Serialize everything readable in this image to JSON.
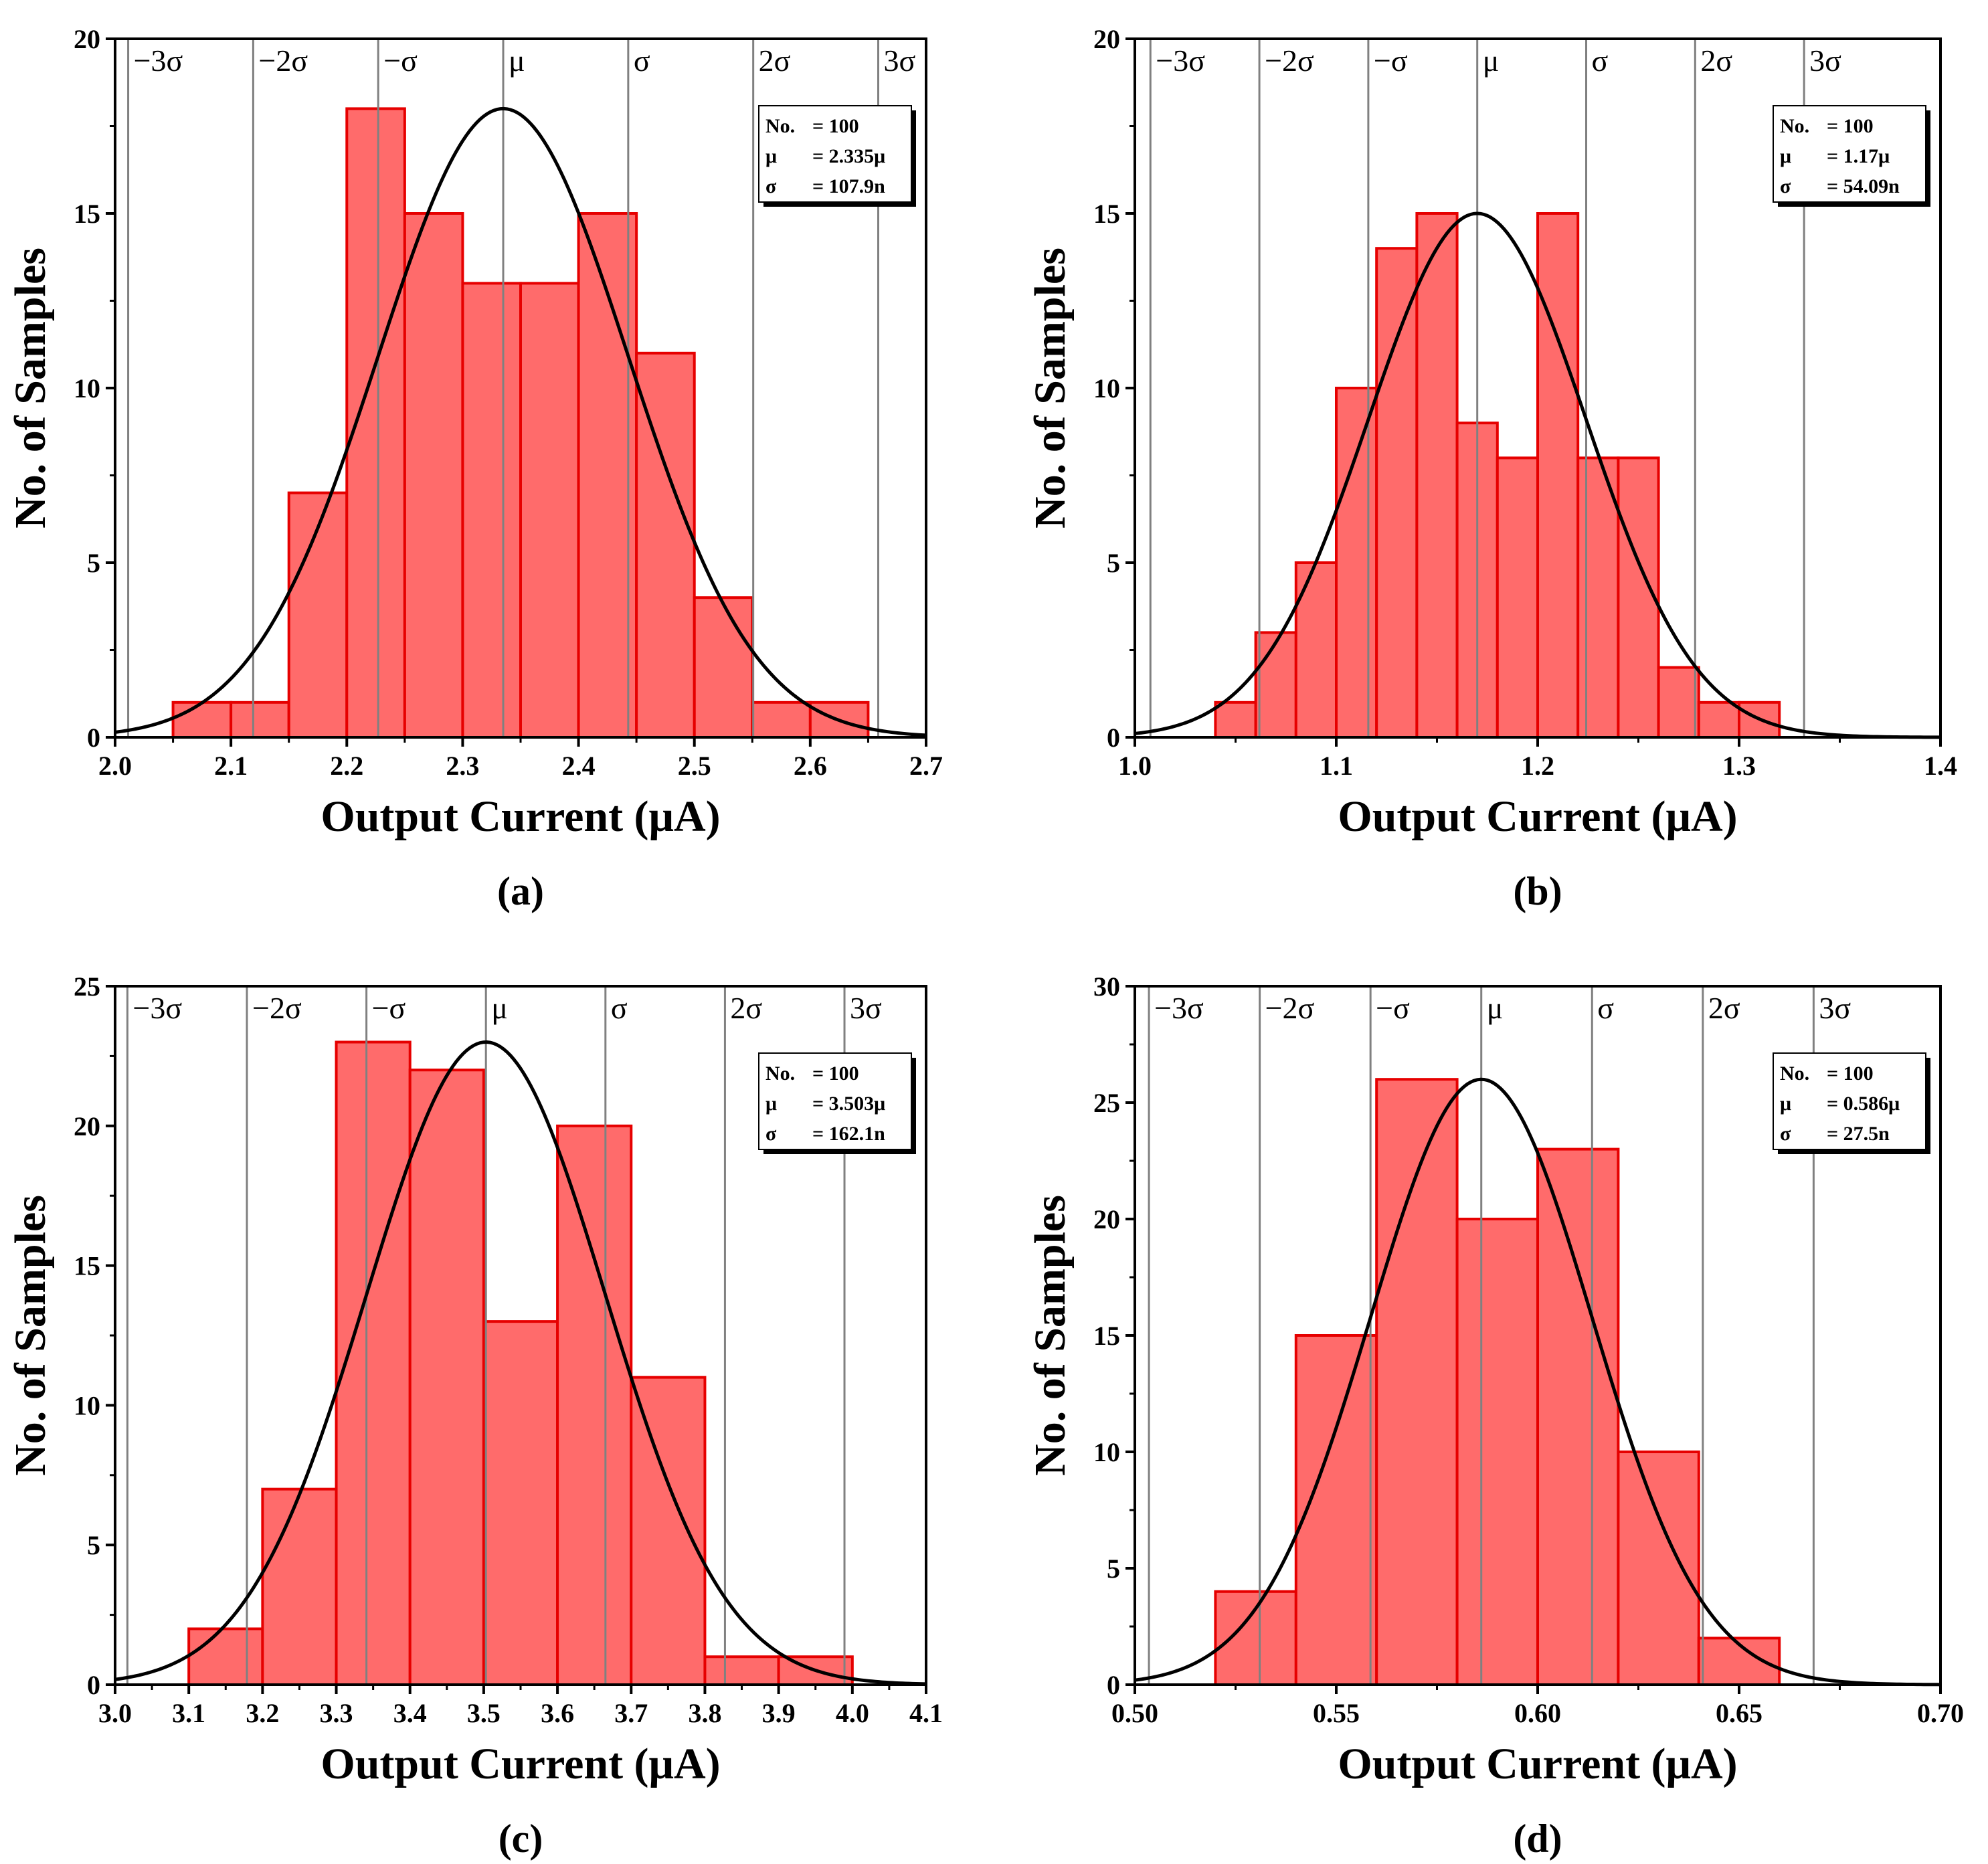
{
  "colors": {
    "bar_fill": "#ff6b6b",
    "bar_edge": "#e60000",
    "curve": "#000000",
    "sigma_line": "#808080",
    "axis": "#000000"
  },
  "chart_data": [
    {
      "type": "bar",
      "panel_label": "(a)",
      "xlabel": "Output Current (μA)",
      "ylabel": "No. of Samples",
      "xlim": [
        2.0,
        2.7
      ],
      "ylim": [
        0,
        20
      ],
      "x_ticks": [
        2.0,
        2.1,
        2.2,
        2.3,
        2.4,
        2.5,
        2.6,
        2.7
      ],
      "x_tick_labels": [
        "2.0",
        "2.1",
        "2.2",
        "2.3",
        "2.4",
        "2.5",
        "2.6",
        "2.7"
      ],
      "y_ticks": [
        0,
        5,
        10,
        15,
        20
      ],
      "y_tick_labels": [
        "0",
        "5",
        "10",
        "15",
        "20"
      ],
      "bin_edges": [
        2.05,
        2.1,
        2.15,
        2.2,
        2.25,
        2.3,
        2.35,
        2.4,
        2.45,
        2.5,
        2.55,
        2.6,
        2.65
      ],
      "counts": [
        1,
        1,
        7,
        18,
        15,
        13,
        13,
        15,
        11,
        4,
        1,
        1
      ],
      "fit": {
        "mean": 2.335,
        "sigma": 0.1079,
        "peak": 18
      },
      "sigma_labels": [
        "−3σ",
        "−2σ",
        "−σ",
        "μ",
        "σ",
        "2σ",
        "3σ"
      ],
      "stats": [
        {
          "key": "No.",
          "value": "= 100"
        },
        {
          "key": "μ",
          "value": "= 2.335μ"
        },
        {
          "key": "σ",
          "value": "= 107.9n"
        }
      ]
    },
    {
      "type": "bar",
      "panel_label": "(b)",
      "xlabel": "Output Current (μA)",
      "ylabel": "No. of Samples",
      "xlim": [
        1.0,
        1.4
      ],
      "ylim": [
        0,
        20
      ],
      "x_ticks": [
        1.0,
        1.1,
        1.2,
        1.3,
        1.4
      ],
      "x_tick_labels": [
        "1.0",
        "1.1",
        "1.2",
        "1.3",
        "1.4"
      ],
      "y_ticks": [
        0,
        5,
        10,
        15,
        20
      ],
      "y_tick_labels": [
        "0",
        "5",
        "10",
        "15",
        "20"
      ],
      "bin_edges": [
        1.04,
        1.06,
        1.08,
        1.1,
        1.12,
        1.14,
        1.16,
        1.18,
        1.2,
        1.22,
        1.24,
        1.26,
        1.28,
        1.3,
        1.32
      ],
      "counts": [
        1,
        3,
        5,
        10,
        14,
        15,
        9,
        8,
        15,
        8,
        8,
        2,
        1,
        1
      ],
      "fit": {
        "mean": 1.17,
        "sigma": 0.05409,
        "peak": 15
      },
      "sigma_labels": [
        "−3σ",
        "−2σ",
        "−σ",
        "μ",
        "σ",
        "2σ",
        "3σ"
      ],
      "stats": [
        {
          "key": "No.",
          "value": "= 100"
        },
        {
          "key": "μ",
          "value": "= 1.17μ"
        },
        {
          "key": "σ",
          "value": "= 54.09n"
        }
      ]
    },
    {
      "type": "bar",
      "panel_label": "(c)",
      "xlabel": "Output Current (μA)",
      "ylabel": "No. of Samples",
      "xlim": [
        3.0,
        4.1
      ],
      "ylim": [
        0,
        25
      ],
      "x_ticks": [
        3.0,
        3.1,
        3.2,
        3.3,
        3.4,
        3.5,
        3.6,
        3.7,
        3.8,
        3.9,
        4.0,
        4.1
      ],
      "x_tick_labels": [
        "3.0",
        "3.1",
        "3.2",
        "3.3",
        "3.4",
        "3.5",
        "3.6",
        "3.7",
        "3.8",
        "3.9",
        "4.0",
        "4.1"
      ],
      "y_ticks": [
        0,
        5,
        10,
        15,
        20,
        25
      ],
      "y_tick_labels": [
        "0",
        "5",
        "10",
        "15",
        "20",
        "25"
      ],
      "bin_edges": [
        3.1,
        3.2,
        3.3,
        3.4,
        3.5,
        3.6,
        3.7,
        3.8,
        3.9,
        4.0
      ],
      "counts": [
        2,
        7,
        23,
        22,
        13,
        20,
        11,
        1,
        1
      ],
      "fit": {
        "mean": 3.503,
        "sigma": 0.1621,
        "peak": 23
      },
      "sigma_labels": [
        "−3σ",
        "−2σ",
        "−σ",
        "μ",
        "σ",
        "2σ",
        "3σ"
      ],
      "stats": [
        {
          "key": "No.",
          "value": "= 100"
        },
        {
          "key": "μ",
          "value": "= 3.503μ"
        },
        {
          "key": "σ",
          "value": "= 162.1n"
        }
      ]
    },
    {
      "type": "bar",
      "panel_label": "(d)",
      "xlabel": "Output Current (μA)",
      "ylabel": "No. of Samples",
      "xlim": [
        0.5,
        0.7
      ],
      "ylim": [
        0,
        30
      ],
      "x_ticks": [
        0.5,
        0.55,
        0.6,
        0.65,
        0.7
      ],
      "x_tick_labels": [
        "0.50",
        "0.55",
        "0.60",
        "0.65",
        "0.70"
      ],
      "y_ticks": [
        0,
        5,
        10,
        15,
        20,
        25,
        30
      ],
      "y_tick_labels": [
        "0",
        "5",
        "10",
        "15",
        "20",
        "25",
        "30"
      ],
      "bin_edges": [
        0.52,
        0.54,
        0.56,
        0.58,
        0.6,
        0.62,
        0.64,
        0.66
      ],
      "counts": [
        4,
        15,
        26,
        20,
        23,
        10,
        2
      ],
      "fit": {
        "mean": 0.586,
        "sigma": 0.0275,
        "peak": 26
      },
      "sigma_labels": [
        "−3σ",
        "−2σ",
        "−σ",
        "μ",
        "σ",
        "2σ",
        "3σ"
      ],
      "stats": [
        {
          "key": "No.",
          "value": "= 100"
        },
        {
          "key": "μ",
          "value": "= 0.586μ"
        },
        {
          "key": "σ",
          "value": "= 27.5n"
        }
      ]
    }
  ]
}
